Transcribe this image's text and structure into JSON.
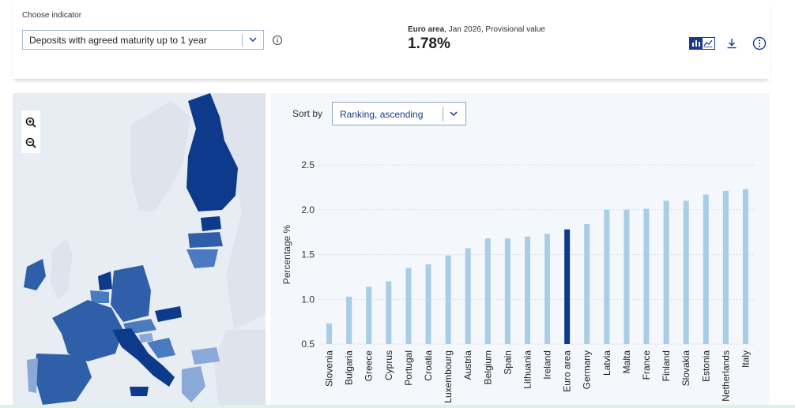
{
  "indicator": {
    "label": "Choose indicator",
    "selected": "Deposits with agreed maturity up to 1 year"
  },
  "kpi": {
    "area": "Euro area",
    "period": ", Jan 2026, Provisional value",
    "value": "1.78%"
  },
  "icons": {
    "info": "info-icon",
    "chart_toggle": "bar-line-toggle-icon",
    "download": "download-icon",
    "more": "more-options-icon",
    "zoom_in": "zoom-in-icon",
    "zoom_out": "zoom-out-icon",
    "chevron": "chevron-down-icon"
  },
  "sort": {
    "label": "Sort by",
    "selected": "Ranking, ascending"
  },
  "colors": {
    "accent": "#1a3a8a",
    "bar": "#a8cde6",
    "bar_highlight": "#0e3a8c",
    "map_dark": "#0e3a8c",
    "map_mid": "#2f5fa8",
    "map_light": "#8aa8d8",
    "map_bg": "#e8ecf3"
  },
  "chart_data": {
    "type": "bar",
    "ylabel": "Percentage %",
    "ylim": [
      0.5,
      2.5
    ],
    "yticks": [
      "0.5",
      "1.0",
      "1.5",
      "2.0",
      "2.5"
    ],
    "grid": true,
    "highlight": "Euro area",
    "categories": [
      "Slovenia",
      "Bulgaria",
      "Greece",
      "Cyprus",
      "Portugal",
      "Croatia",
      "Luxembourg",
      "Austria",
      "Belgium",
      "Spain",
      "Lithuania",
      "Ireland",
      "Euro area",
      "Germany",
      "Latvia",
      "Malta",
      "France",
      "Finland",
      "Slovakia",
      "Estonia",
      "Netherlands",
      "Italy"
    ],
    "values": [
      0.73,
      1.03,
      1.14,
      1.2,
      1.35,
      1.39,
      1.49,
      1.57,
      1.68,
      1.68,
      1.7,
      1.73,
      1.78,
      1.84,
      2.0,
      2.0,
      2.01,
      2.1,
      2.1,
      2.17,
      2.21,
      2.23
    ]
  }
}
